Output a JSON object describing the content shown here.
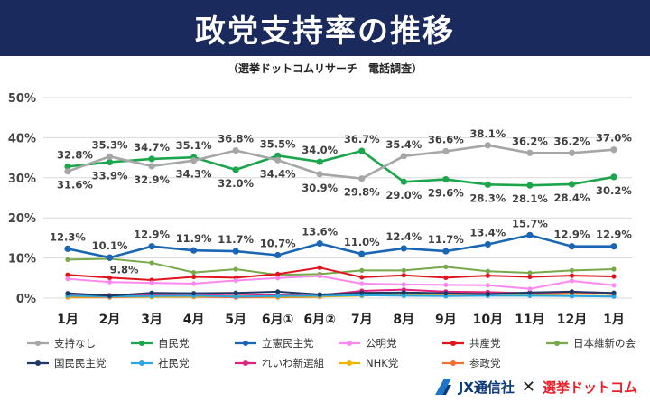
{
  "header": {
    "title": "政党支持率の推移",
    "subtitle": "（選挙ドットコムリサーチ　電話調査）"
  },
  "footer": {
    "brand1": "JX通信社",
    "separator": "✕",
    "brand2": "選挙ドットコム"
  },
  "chart_data": {
    "type": "line",
    "categories": [
      "1月",
      "2月",
      "3月",
      "4月",
      "5月",
      "6月①",
      "6月②",
      "7月",
      "8月",
      "9月",
      "10月",
      "11月",
      "12月",
      "1月"
    ],
    "ylim": [
      0,
      50
    ],
    "yticks": [
      "0%",
      "10%",
      "20%",
      "30%",
      "40%",
      "50%"
    ],
    "grid": true,
    "legend_position": "bottom",
    "series": [
      {
        "name": "支持なし",
        "color": "#a6a6a6",
        "values": [
          31.6,
          35.3,
          32.9,
          34.3,
          36.8,
          34.4,
          30.9,
          29.8,
          35.4,
          36.6,
          38.1,
          36.2,
          36.2,
          37.0
        ],
        "labels": [
          "31.6%",
          "35.3%",
          "32.9%",
          "34.3%",
          "36.8%",
          "34.4%",
          "30.9%",
          "29.8%",
          "35.4%",
          "36.6%",
          "38.1%",
          "36.2%",
          "36.2%",
          "37.0%"
        ]
      },
      {
        "name": "自民党",
        "color": "#1ca64c",
        "values": [
          32.8,
          33.9,
          34.7,
          35.1,
          32.0,
          35.5,
          34.0,
          36.7,
          29.0,
          29.6,
          28.3,
          28.1,
          28.4,
          30.2
        ],
        "labels": [
          "32.8%",
          "33.9%",
          "34.7%",
          "35.1%",
          "32.0%",
          "35.5%",
          "34.0%",
          "36.7%",
          "29.0%",
          "29.6%",
          "28.3%",
          "28.1%",
          "28.4%",
          "30.2%"
        ]
      },
      {
        "name": "立憲民主党",
        "color": "#1a66b4",
        "values": [
          12.3,
          10.1,
          12.9,
          11.9,
          11.7,
          10.7,
          13.6,
          11.0,
          12.4,
          11.7,
          13.4,
          15.7,
          12.9,
          12.9
        ],
        "labels": [
          "12.3%",
          "10.1%",
          "12.9%",
          "11.9%",
          "11.7%",
          "10.7%",
          "13.6%",
          "11.0%",
          "12.4%",
          "11.7%",
          "13.4%",
          "15.7%",
          "12.9%",
          "12.9%"
        ]
      },
      {
        "name": "公明党",
        "color": "#ff88ee",
        "values": [
          4.8,
          4.0,
          3.8,
          3.6,
          4.4,
          5.0,
          5.5,
          3.6,
          3.4,
          3.3,
          3.2,
          2.3,
          4.3,
          3.2
        ]
      },
      {
        "name": "共産党",
        "color": "#e0141e",
        "values": [
          5.8,
          5.1,
          4.5,
          5.3,
          5.1,
          6.0,
          7.6,
          5.2,
          5.7,
          5.1,
          5.6,
          5.3,
          5.6,
          5.4
        ]
      },
      {
        "name": "日本維新の会",
        "color": "#77a84a",
        "values": [
          9.6,
          9.8,
          8.8,
          6.4,
          7.2,
          5.8,
          6.0,
          6.9,
          6.9,
          7.8,
          6.7,
          6.3,
          6.9,
          7.2
        ],
        "labels": [
          "",
          "9.8%",
          "",
          "",
          "",
          "",
          "",
          "",
          "",
          "",
          "",
          "",
          "",
          ""
        ]
      },
      {
        "name": "国民民主党",
        "color": "#203864",
        "values": [
          1.2,
          0.6,
          1.3,
          1.2,
          1.3,
          1.6,
          0.9,
          1.3,
          1.4,
          1.2,
          1.0,
          1.4,
          1.6,
          1.3
        ]
      },
      {
        "name": "社民党",
        "color": "#2aa6e0",
        "values": [
          0.6,
          0.4,
          0.5,
          0.6,
          0.4,
          0.5,
          0.6,
          0.7,
          0.6,
          0.5,
          0.6,
          0.6,
          0.5,
          0.4
        ]
      },
      {
        "name": "れいわ新選組",
        "color": "#e0247c",
        "values": [
          0.8,
          0.7,
          0.9,
          0.8,
          1.0,
          0.8,
          0.7,
          1.8,
          2.1,
          1.6,
          1.5,
          1.2,
          1.6,
          1.0
        ]
      },
      {
        "name": "NHK党",
        "color": "#f0b400",
        "values": [
          0.3,
          0.4,
          0.3,
          0.4,
          0.5,
          0.3,
          0.4,
          0.6,
          0.9,
          1.0,
          1.2,
          0.8,
          0.6,
          0.5
        ]
      },
      {
        "name": "参政党",
        "color": "#f07030",
        "values": [
          0.2,
          0.2,
          0.3,
          0.3,
          0.2,
          0.2,
          0.3,
          1.4,
          1.1,
          0.9,
          0.8,
          1.1,
          1.2,
          1.1
        ]
      }
    ]
  }
}
